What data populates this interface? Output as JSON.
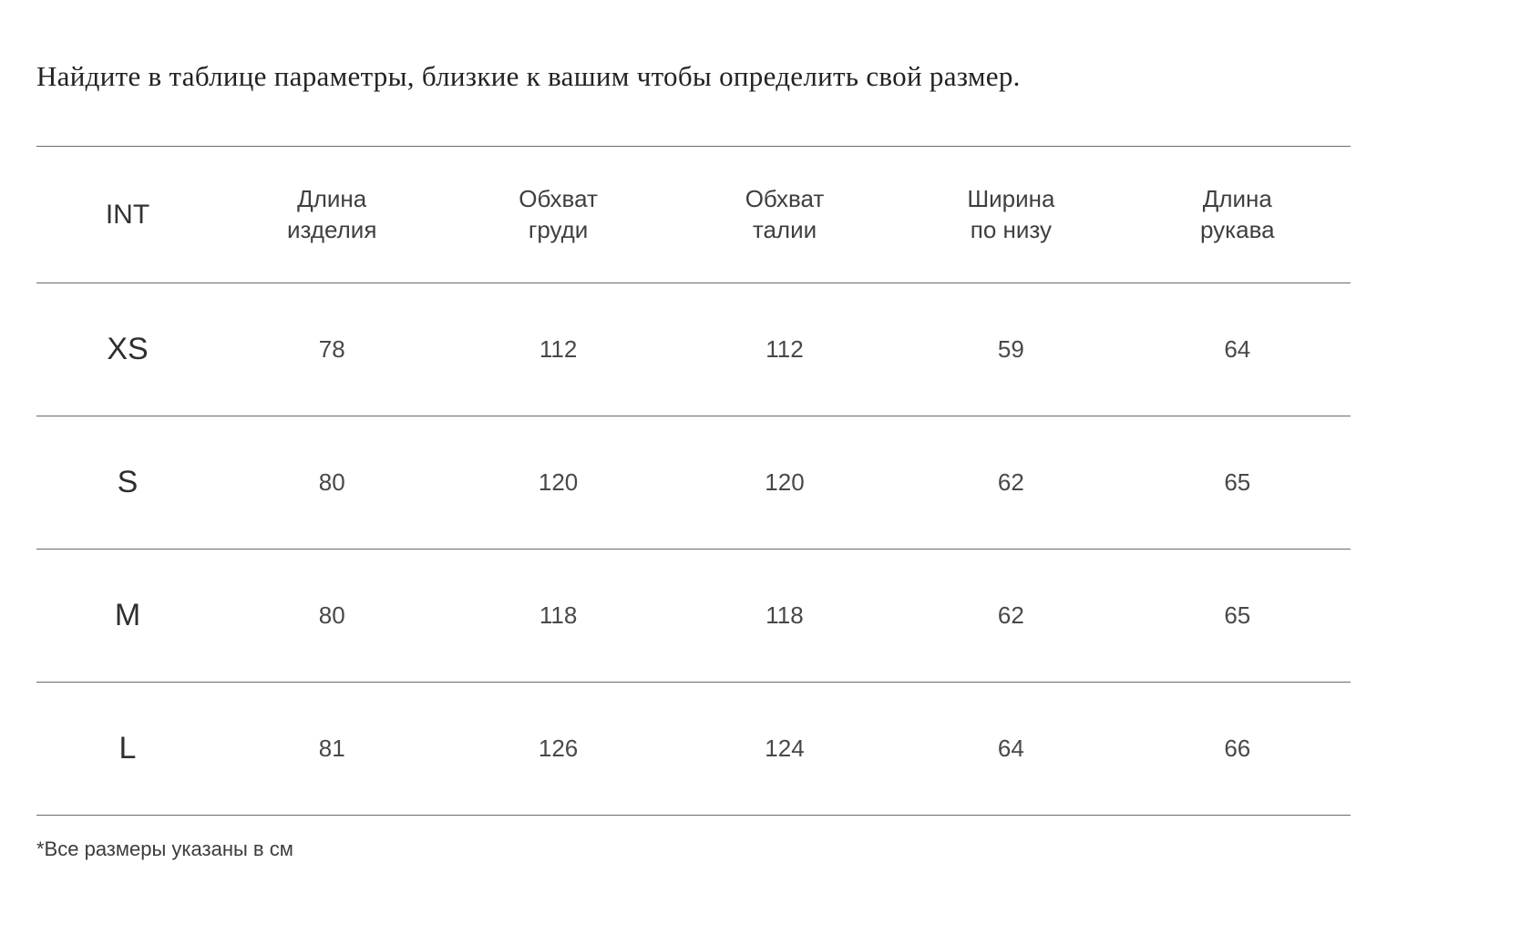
{
  "page": {
    "title": "Найдите в таблице параметры, близкие к вашим чтобы определить свой размер.",
    "footnote": "*Все размеры указаны в см"
  },
  "table": {
    "columns": [
      "INT",
      "Длина\nизделия",
      "Обхват\nгруди",
      "Обхват\nталии",
      "Ширина\nпо низу",
      "Длина\nрукава"
    ],
    "rows": [
      {
        "size": "XS",
        "values": [
          "78",
          "112",
          "112",
          "59",
          "64"
        ]
      },
      {
        "size": "S",
        "values": [
          "80",
          "120",
          "120",
          "62",
          "65"
        ]
      },
      {
        "size": "M",
        "values": [
          "80",
          "118",
          "118",
          "62",
          "65"
        ]
      },
      {
        "size": "L",
        "values": [
          "81",
          "126",
          "124",
          "64",
          "66"
        ]
      }
    ]
  }
}
